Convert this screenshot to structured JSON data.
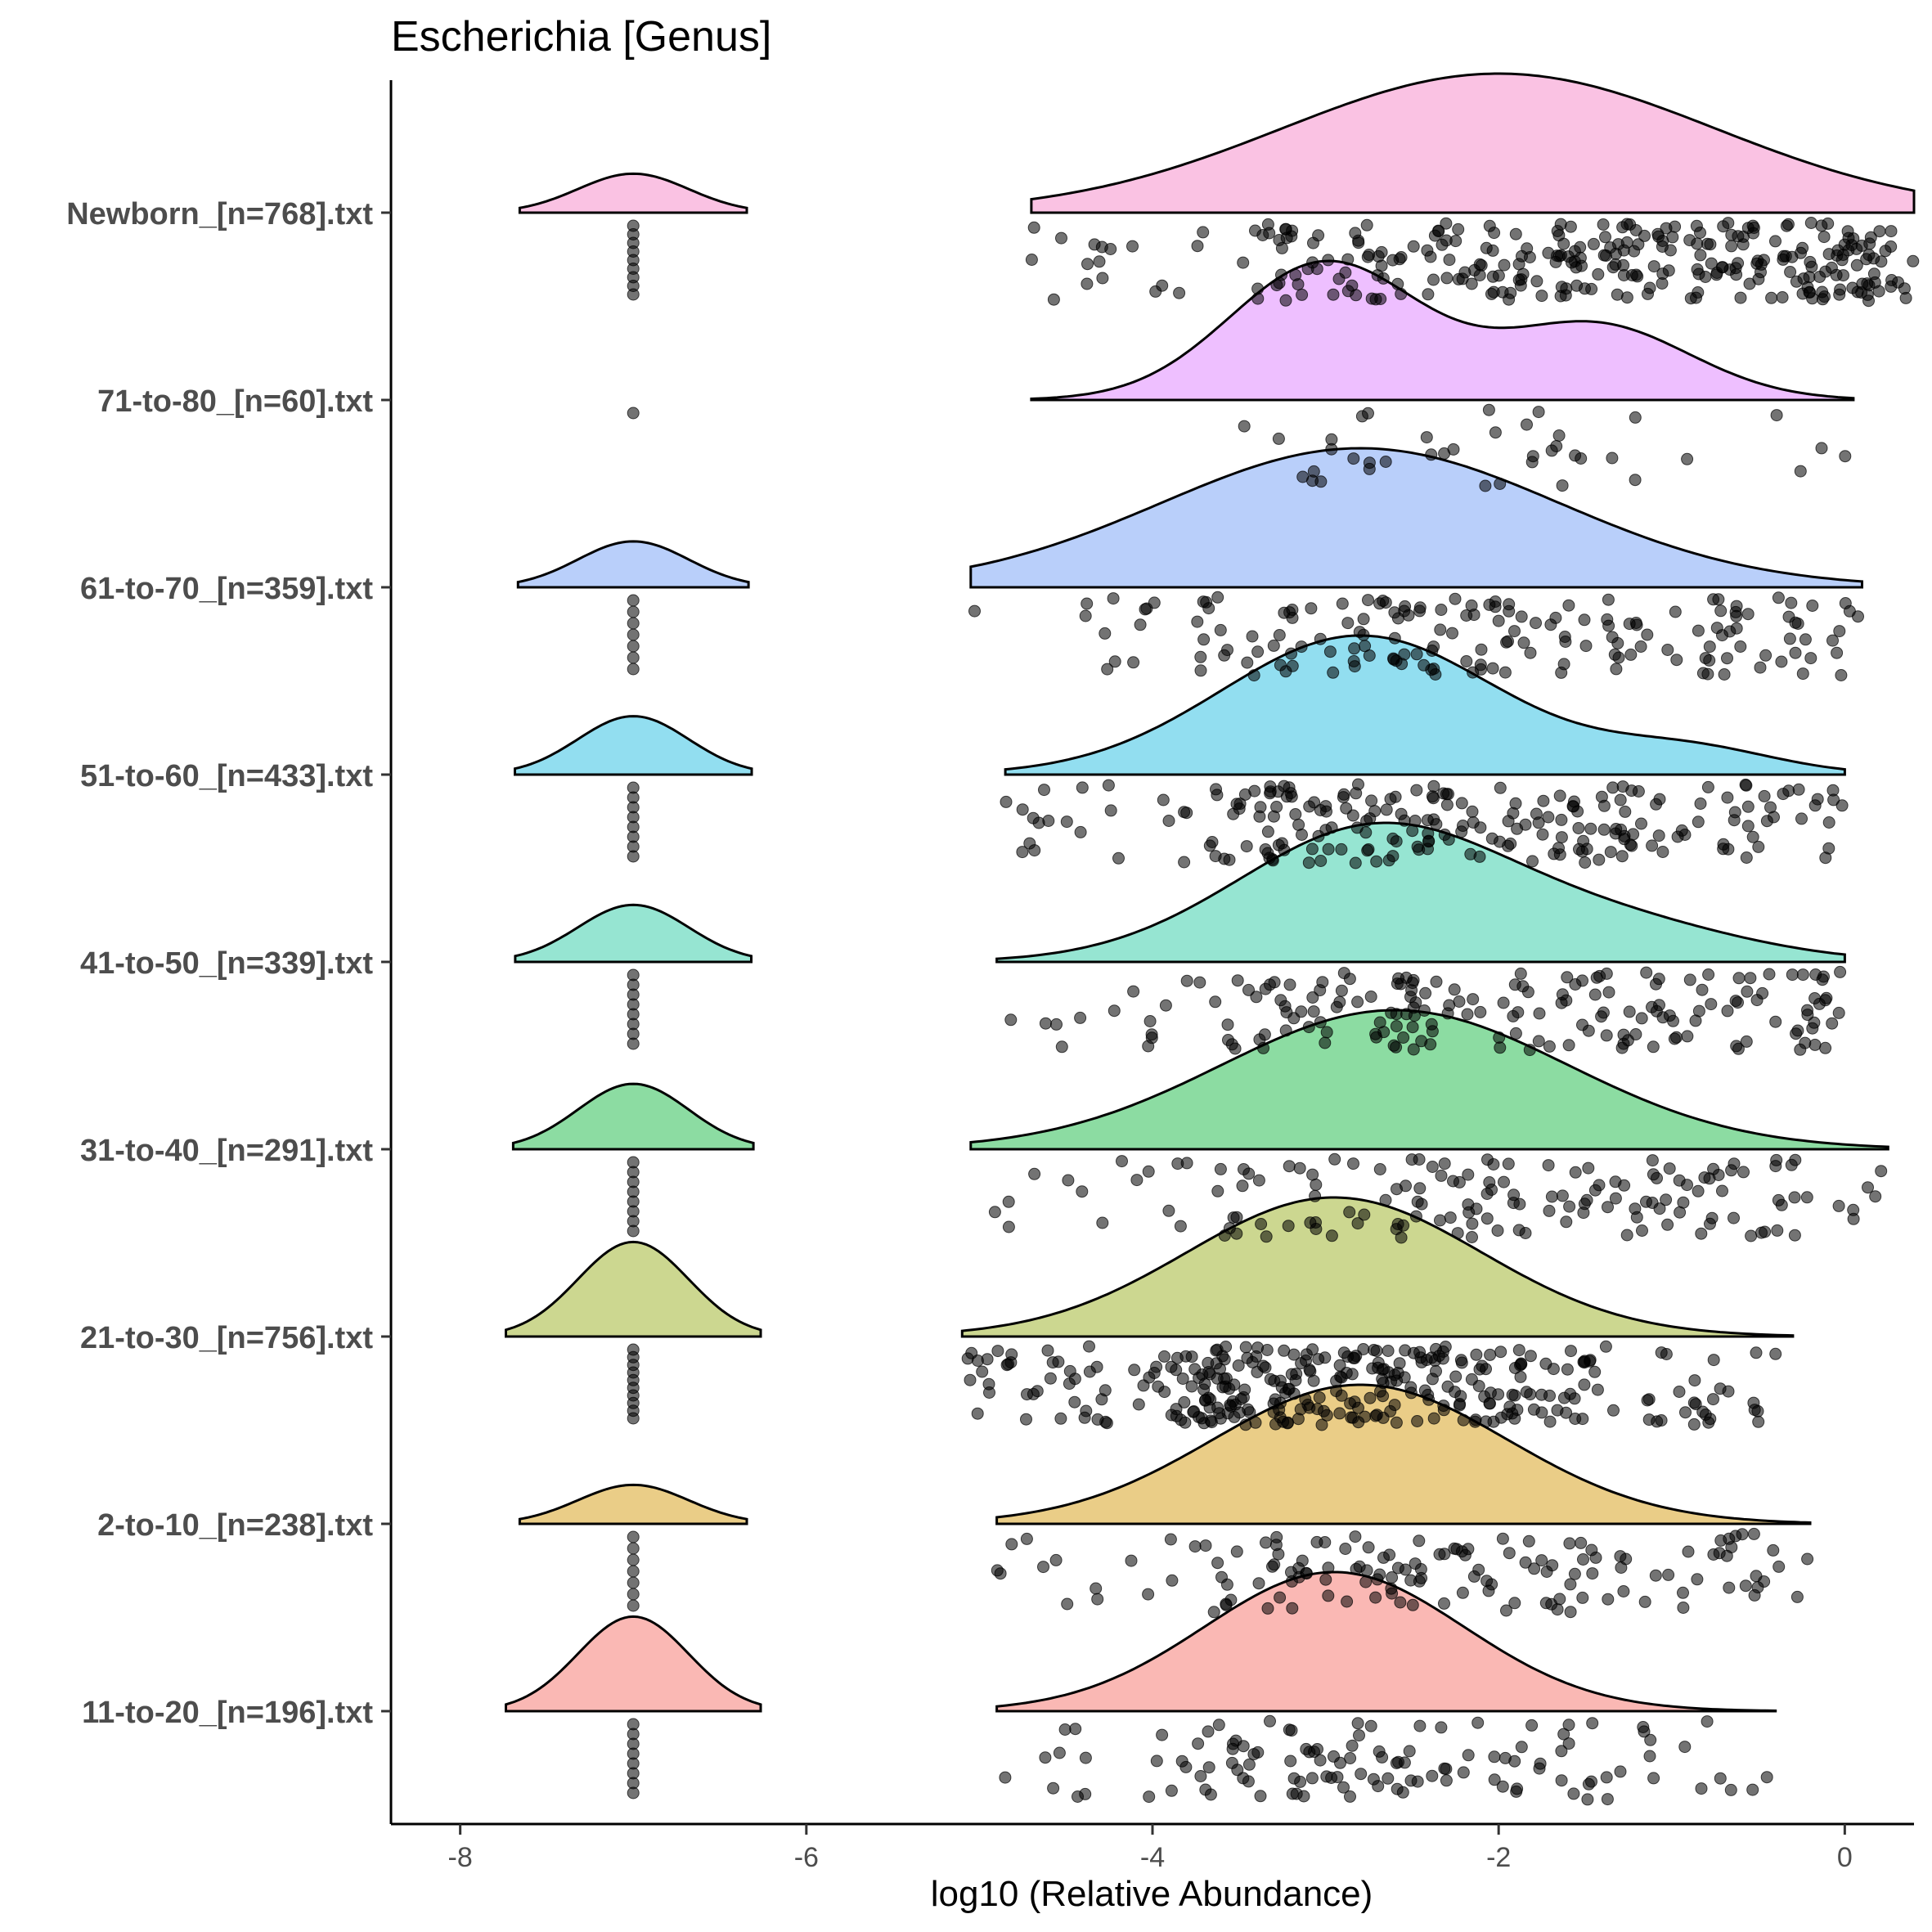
{
  "chart_data": {
    "type": "raincloud",
    "title": "Escherichia [Genus]",
    "xlabel": "log10 (Relative Abundance)",
    "ylabel": "",
    "xlim": [
      -8.4,
      0.4
    ],
    "xticks": [
      -8,
      -6,
      -4,
      -2,
      0
    ],
    "tick_labels": [
      "-8",
      "-6",
      "-4",
      "-2",
      "0"
    ],
    "grid": false,
    "legend": "none",
    "floor_value": -7,
    "series": [
      {
        "name": "Newborn_[n=768].txt",
        "color": "#f58fcc",
        "range": [
          -4.7,
          0.4
        ],
        "peaks": [
          {
            "mean": -2.0,
            "sd": 1.25,
            "w": 1.0
          }
        ],
        "floor_height": 0.28,
        "point_count": 300,
        "point_weights": [
          0.05,
          0.25,
          0.35,
          0.35
        ],
        "floor_points": 9
      },
      {
        "name": "71-to-80_[n=60].txt",
        "color": "#e08aff",
        "range": [
          -4.7,
          0.05
        ],
        "peaks": [
          {
            "mean": -3.0,
            "sd": 0.55,
            "w": 1.0
          },
          {
            "mean": -1.45,
            "sd": 0.55,
            "w": 0.55
          }
        ],
        "floor_height": 0,
        "point_count": 40,
        "point_weights": [
          0.05,
          0.45,
          0.35,
          0.15
        ],
        "floor_points": 1
      },
      {
        "name": "61-to-70_[n=359].txt",
        "color": "#80a8f5",
        "range": [
          -5.05,
          0.1
        ],
        "peaks": [
          {
            "mean": -2.8,
            "sd": 1.15,
            "w": 1.0
          }
        ],
        "floor_height": 0.33,
        "point_count": 170,
        "point_weights": [
          0.08,
          0.3,
          0.35,
          0.27
        ],
        "floor_points": 7
      },
      {
        "name": "51-to-60_[n=433].txt",
        "color": "#39c3e3",
        "range": [
          -4.85,
          0.0
        ],
        "peaks": [
          {
            "mean": -2.8,
            "sd": 0.8,
            "w": 1.0
          },
          {
            "mean": -0.9,
            "sd": 0.5,
            "w": 0.18
          }
        ],
        "floor_height": 0.42,
        "point_count": 220,
        "point_weights": [
          0.1,
          0.4,
          0.3,
          0.2
        ],
        "floor_points": 8
      },
      {
        "name": "41-to-50_[n=339].txt",
        "color": "#3fcfad",
        "range": [
          -4.9,
          0.0
        ],
        "peaks": [
          {
            "mean": -2.7,
            "sd": 0.8,
            "w": 1.0
          },
          {
            "mean": -1.2,
            "sd": 0.7,
            "w": 0.22
          }
        ],
        "floor_height": 0.41,
        "point_count": 180,
        "point_weights": [
          0.1,
          0.35,
          0.3,
          0.25
        ],
        "floor_points": 8
      },
      {
        "name": "31-to-40_[n=291].txt",
        "color": "#2dbf56",
        "range": [
          -5.05,
          0.25
        ],
        "peaks": [
          {
            "mean": -2.6,
            "sd": 1.0,
            "w": 1.0
          }
        ],
        "floor_height": 0.47,
        "point_count": 150,
        "point_weights": [
          0.12,
          0.3,
          0.3,
          0.28
        ],
        "floor_points": 8
      },
      {
        "name": "21-to-30_[n=756].txt",
        "color": "#a3b634",
        "range": [
          -5.1,
          -0.3
        ],
        "peaks": [
          {
            "mean": -2.95,
            "sd": 0.85,
            "w": 1.0
          }
        ],
        "floor_height": 0.68,
        "point_count": 330,
        "point_weights": [
          0.15,
          0.45,
          0.3,
          0.1
        ],
        "floor_points": 10
      },
      {
        "name": "2-to-10_[n=238].txt",
        "color": "#d9a425",
        "range": [
          -4.9,
          -0.2
        ],
        "peaks": [
          {
            "mean": -2.8,
            "sd": 0.85,
            "w": 1.0
          }
        ],
        "floor_height": 0.28,
        "point_count": 140,
        "point_weights": [
          0.08,
          0.35,
          0.35,
          0.22
        ],
        "floor_points": 7
      },
      {
        "name": "11-to-20_[n=196].txt",
        "color": "#f57e76",
        "range": [
          -4.9,
          -0.4
        ],
        "peaks": [
          {
            "mean": -2.95,
            "sd": 0.75,
            "w": 1.0
          }
        ],
        "floor_height": 0.68,
        "point_count": 120,
        "point_weights": [
          0.1,
          0.45,
          0.3,
          0.15
        ],
        "floor_points": 8
      }
    ]
  }
}
